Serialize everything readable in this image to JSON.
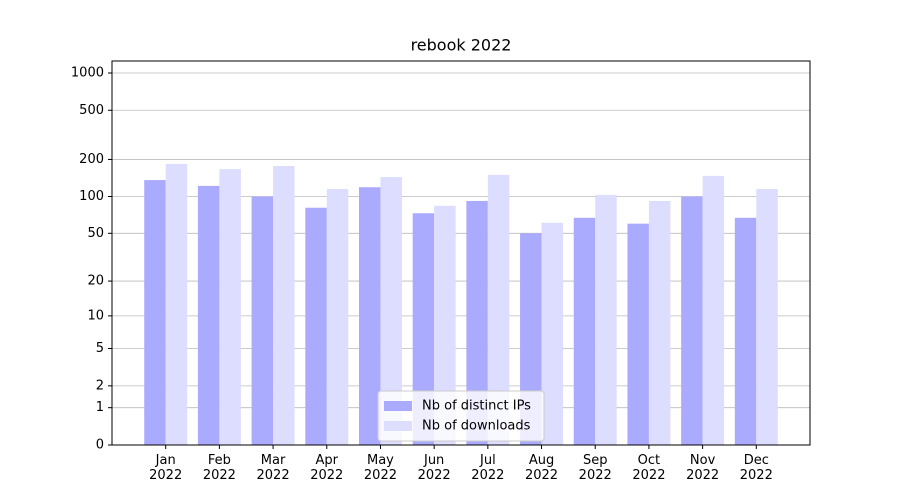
{
  "chart_data": {
    "type": "bar",
    "title": "rebook 2022",
    "yscale": "symlog",
    "grid": true,
    "legend": "lower center",
    "categories": [
      "Jan\n2022",
      "Feb\n2022",
      "Mar\n2022",
      "Apr\n2022",
      "May\n2022",
      "Jun\n2022",
      "Jul\n2022",
      "Aug\n2022",
      "Sep\n2022",
      "Oct\n2022",
      "Nov\n2022",
      "Dec\n2022"
    ],
    "series": [
      {
        "name": "Nb of distinct IPs",
        "color": "#aaaaff",
        "values": [
          136,
          122,
          100,
          81,
          119,
          73,
          92,
          50,
          67,
          60,
          100,
          67
        ]
      },
      {
        "name": "Nb of downloads",
        "color": "#ddddff",
        "values": [
          184,
          167,
          177,
          115,
          144,
          84,
          150,
          61,
          103,
          92,
          147,
          115
        ]
      }
    ],
    "ylim": [
      0,
      1250
    ],
    "yticks": [
      0,
      1,
      2,
      5,
      10,
      20,
      50,
      100,
      200,
      500,
      1000
    ]
  }
}
